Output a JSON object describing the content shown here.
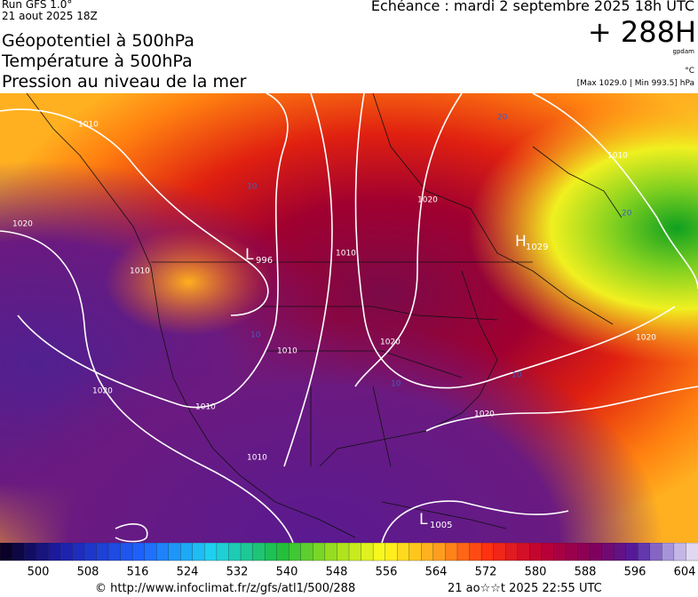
{
  "header": {
    "run": "Run GFS 1.0°",
    "date": "21 aout 2025 18Z",
    "forecast": "Echéance : mardi 2 septembre 2025 18h UTC",
    "step": "+ 288H",
    "unit_geo": "gpdam",
    "unit_temp": "°C",
    "pressure_range": "[Max 1029.0 | Min 993.5] hPa"
  },
  "titles": [
    "Géopotentiel à 500hPa",
    "Température à 500hPa",
    "Pression au niveau de la mer"
  ],
  "map": {
    "centers": [
      {
        "symbol": "L",
        "value": "996"
      },
      {
        "symbol": "H",
        "value": "1029"
      },
      {
        "symbol": "L",
        "value": "1005"
      }
    ],
    "isobar_labels": [
      "1010",
      "1020",
      "1010",
      "1010",
      "1020",
      "1020",
      "1010",
      "1010",
      "1010",
      "1020",
      "1020",
      "1020",
      "1010"
    ],
    "temp_labels": [
      "10",
      "20",
      "10",
      "10",
      "10",
      "20"
    ]
  },
  "scale": {
    "labels": [
      500,
      508,
      516,
      524,
      532,
      540,
      548,
      556,
      564,
      572,
      580,
      588,
      596,
      604
    ]
  },
  "footer": {
    "source": "© http://www.infoclimat.fr/z/gfs/atl1/500/288",
    "generated": "21 ao☆☆t 2025 22:55 UTC"
  }
}
